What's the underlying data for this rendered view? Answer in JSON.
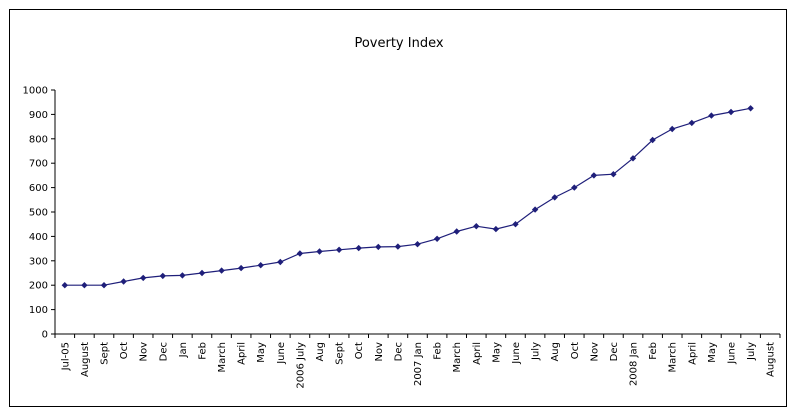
{
  "chart_data": {
    "type": "line",
    "title": "Poverty Index",
    "xlabel": "",
    "ylabel": "",
    "ylim": [
      0,
      1000
    ],
    "yticks": [
      0,
      100,
      200,
      300,
      400,
      500,
      600,
      700,
      800,
      900,
      1000
    ],
    "grid": false,
    "legend": "none",
    "categories": [
      "Jul-05",
      "August",
      "Sept",
      "Oct",
      "Nov",
      "Dec",
      "Jan",
      "Feb",
      "March",
      "April",
      "May",
      "June",
      "2006 July",
      "Aug",
      "Sept",
      "Oct",
      "Nov",
      "Dec",
      "2007 Jan",
      "Feb",
      "March",
      "April",
      "May",
      "June",
      "July",
      "Aug",
      "Oct",
      "Nov",
      "Dec",
      "2008 Jan",
      "Feb",
      "March",
      "April",
      "May",
      "June",
      "July",
      "August"
    ],
    "series": [
      {
        "color": "#1f1f7a",
        "values": [
          200,
          200,
          200,
          215,
          230,
          238,
          240,
          250,
          260,
          270,
          282,
          295,
          330,
          338,
          345,
          352,
          357,
          358,
          368,
          390,
          420,
          442,
          430,
          450,
          510,
          560,
          600,
          650,
          655,
          720,
          795,
          840,
          865,
          895,
          910,
          925,
          null
        ]
      }
    ]
  }
}
